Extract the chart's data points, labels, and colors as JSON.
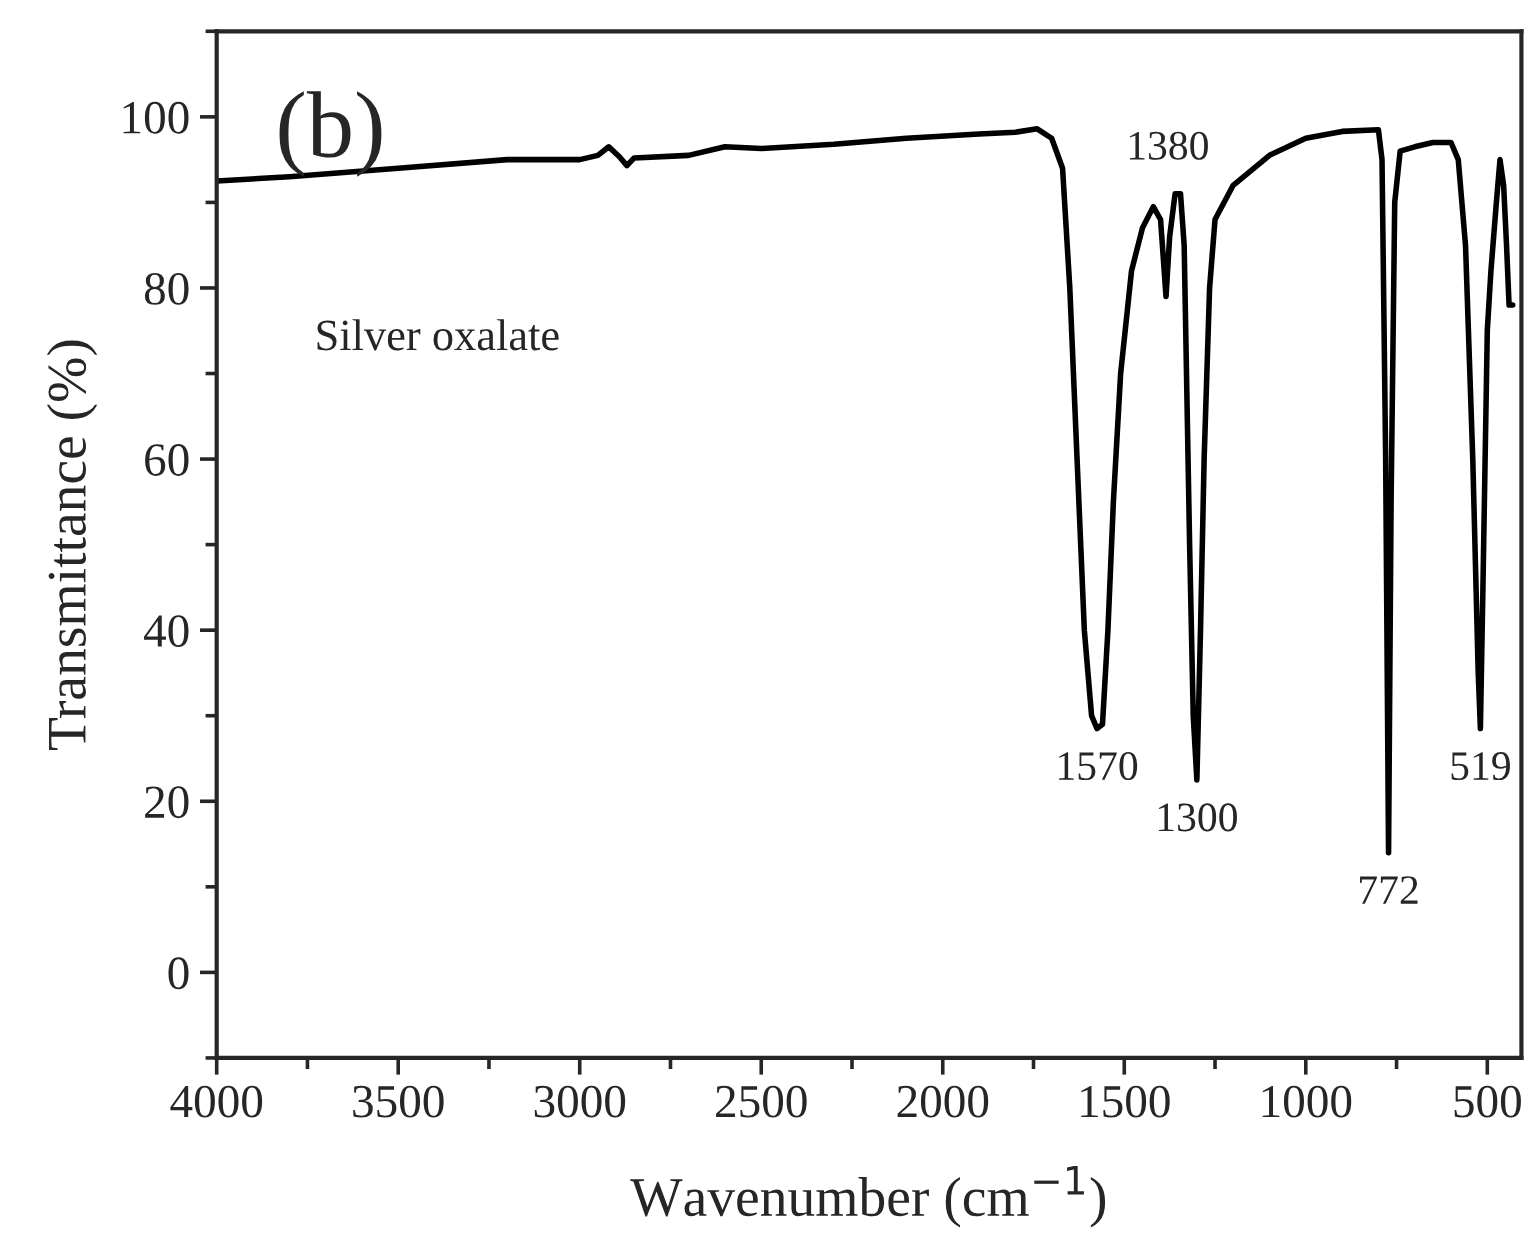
{
  "chart_data": {
    "type": "line",
    "xlabel": "Wavenumber (cm$^{−1}$)",
    "ylabel": "Transmittance (%)",
    "x": [
      4000,
      3800,
      3500,
      3200,
      3000,
      2950,
      2920,
      2890,
      2870,
      2850,
      2700,
      2600,
      2500,
      2300,
      2100,
      1900,
      1800,
      1740,
      1700,
      1670,
      1650,
      1630,
      1610,
      1590,
      1575,
      1560,
      1545,
      1530,
      1510,
      1480,
      1450,
      1420,
      1400,
      1390,
      1385,
      1375,
      1360,
      1345,
      1335,
      1320,
      1310,
      1300,
      1290,
      1280,
      1265,
      1250,
      1200,
      1100,
      1000,
      900,
      800,
      790,
      780,
      772,
      765,
      755,
      740,
      700,
      650,
      600,
      580,
      560,
      540,
      525,
      519,
      512,
      500,
      490,
      475,
      465,
      455,
      447,
      440,
      430
    ],
    "series": [
      {
        "color": "#000000",
        "values": [
          92.5,
          93,
          94,
          95,
          95,
          95.5,
          96.5,
          95.3,
          94.3,
          95.2,
          95.5,
          96.5,
          96.3,
          96.8,
          97.5,
          98,
          98.2,
          98.6,
          97.5,
          94,
          80,
          60,
          40,
          30,
          28.5,
          29,
          40,
          55,
          70,
          82,
          87,
          89.5,
          88,
          82,
          79,
          86,
          91,
          91,
          85,
          50,
          30,
          22.5,
          40,
          60,
          80,
          88,
          92,
          95.5,
          97.5,
          98.3,
          98.5,
          95,
          60,
          14,
          55,
          90,
          96,
          96.5,
          97,
          97,
          95,
          85,
          60,
          35,
          28.5,
          45,
          75,
          82,
          90,
          95,
          92,
          85,
          78,
          78
        ]
      }
    ],
    "xlim": [
      4000,
      406
    ],
    "xticks": [
      4000,
      3500,
      3000,
      2500,
      2000,
      1500,
      1000,
      500
    ],
    "ylim": [
      -10,
      110
    ],
    "yticks": [
      0,
      20,
      40,
      60,
      80,
      100
    ],
    "grid": false,
    "marker": "none",
    "line_style": "solid",
    "annotations": [
      "(b)",
      "Silver oxalate",
      {
        "text": "1570",
        "x": 1575,
        "y": 28.5
      },
      "1380",
      {
        "text": "1300",
        "x": 1300,
        "y": 22.5
      },
      {
        "text": "772",
        "x": 772,
        "y": 14
      },
      {
        "text": "519",
        "x": 519,
        "y": 28.5
      }
    ]
  }
}
